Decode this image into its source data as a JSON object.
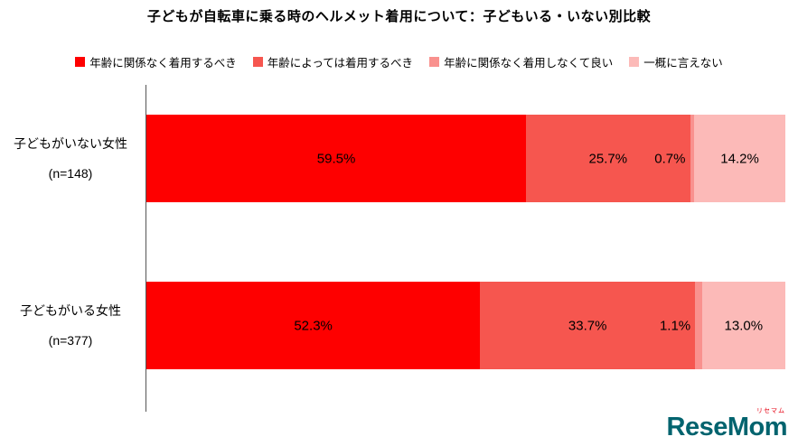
{
  "chart_data": {
    "type": "bar",
    "orientation": "horizontal-stacked",
    "title": "子どもが自転車に乗る時のヘルメット着用について：子どもいる・いない別比較",
    "series": [
      {
        "name": "年齢に関係なく着用するべき",
        "color": "#fe0000"
      },
      {
        "name": "年齢によっては着用するべき",
        "color": "#f6564f"
      },
      {
        "name": "年齢に関係なく着用しなくて良い",
        "color": "#f9918e"
      },
      {
        "name": "一概に言えない",
        "color": "#fcbab8"
      }
    ],
    "rows": [
      {
        "label": "子どもがいない女性",
        "n": "(n=148)",
        "values": [
          59.5,
          25.7,
          0.7,
          14.2
        ]
      },
      {
        "label": "子どもがいる女性",
        "n": "(n=377)",
        "values": [
          52.3,
          33.7,
          1.1,
          13.0
        ]
      }
    ],
    "xlim": [
      0,
      100
    ],
    "value_format": "percent_one_decimal",
    "legend_position": "top",
    "grid": false
  },
  "logo": {
    "text": "ReseMom",
    "kana": "リセマム"
  }
}
